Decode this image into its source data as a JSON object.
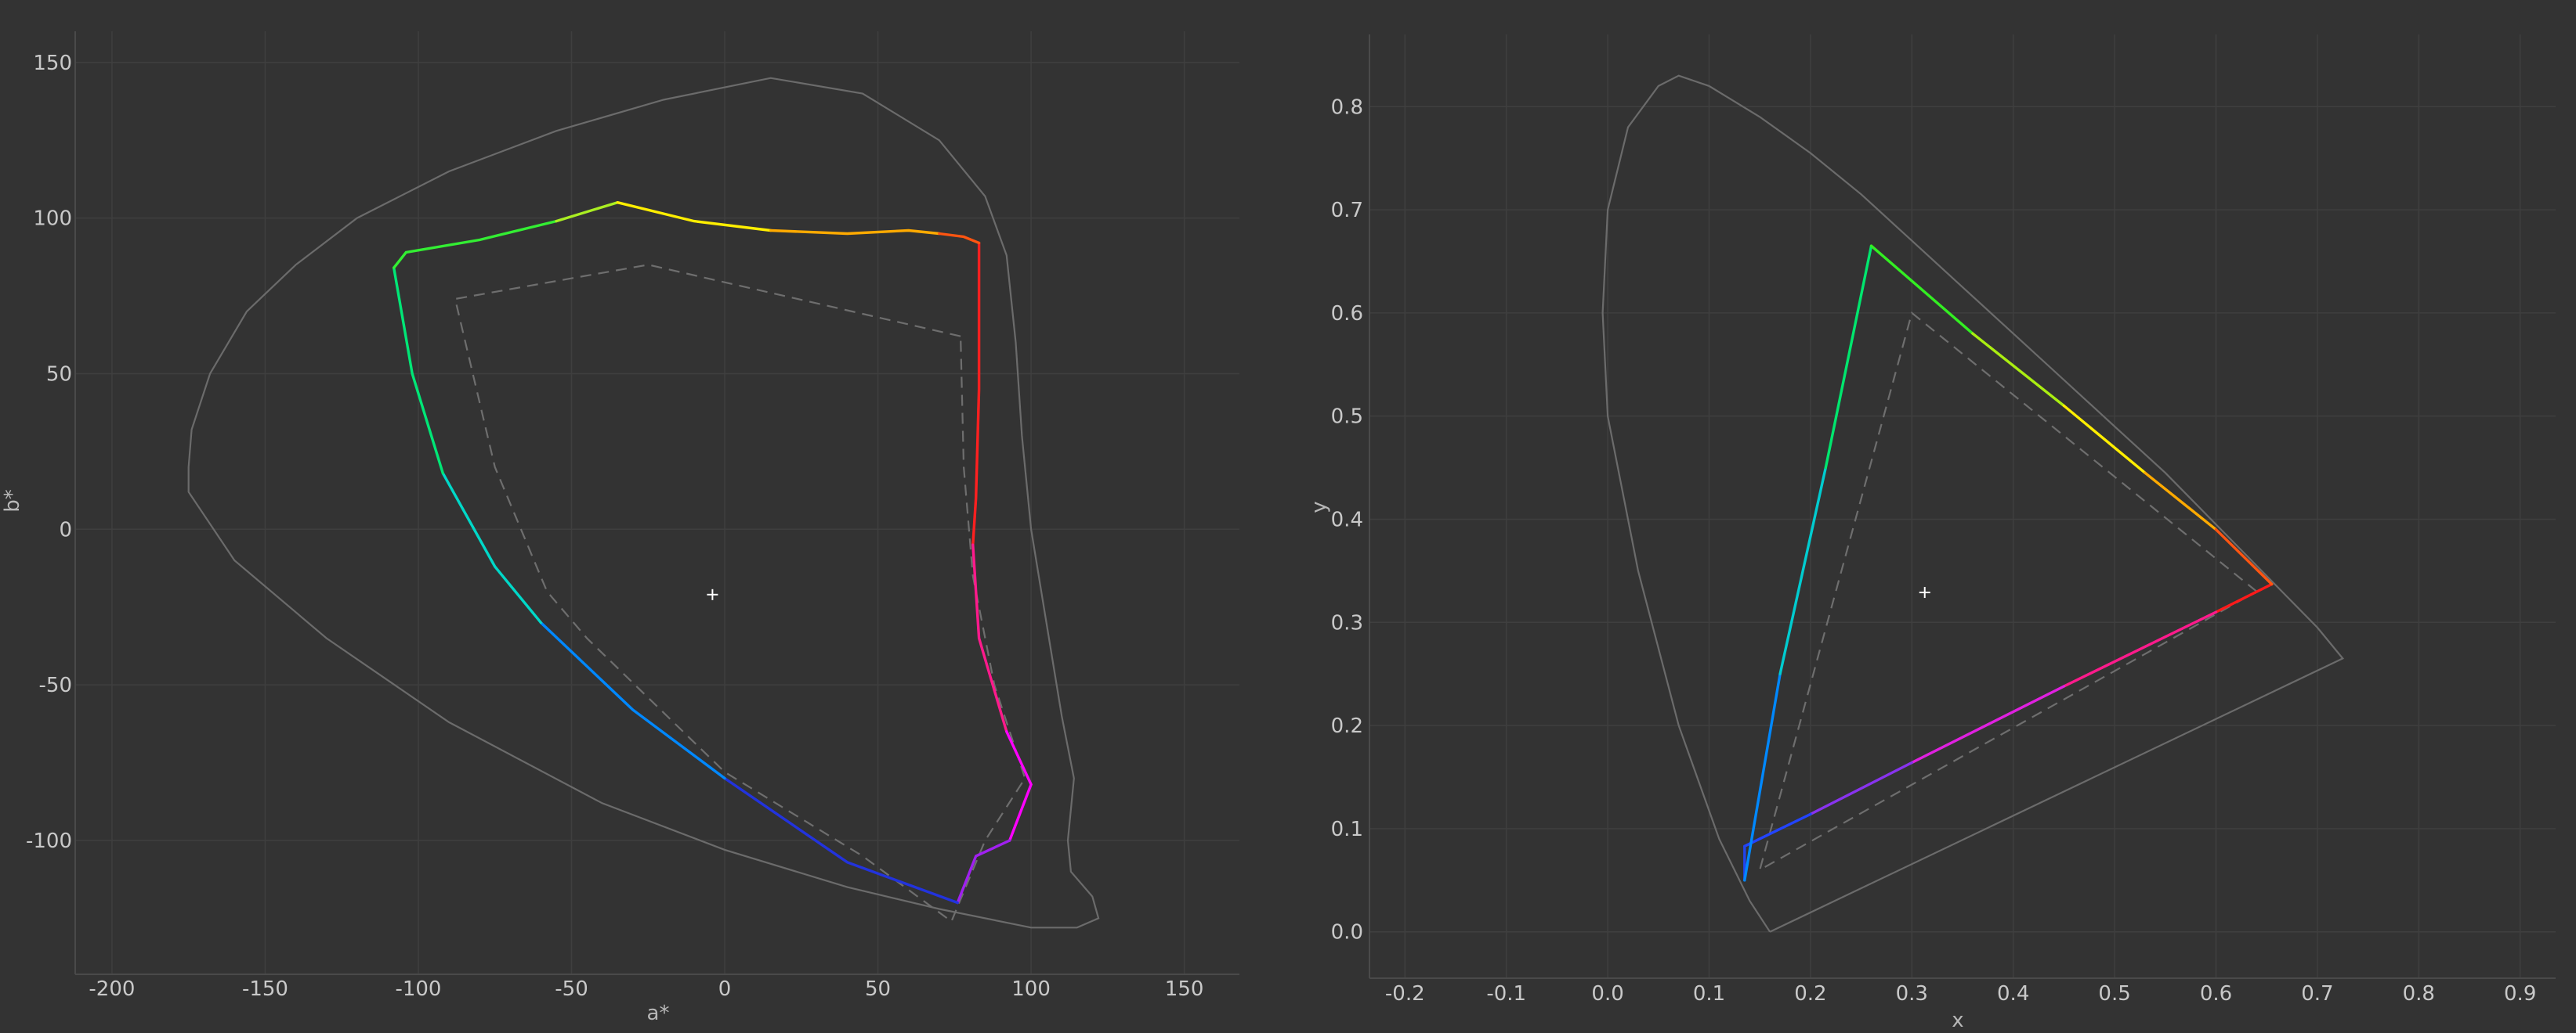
{
  "chart_data": [
    {
      "type": "scatter",
      "title": "",
      "xlabel": "a*",
      "ylabel": "b*",
      "xlim": [
        -212,
        168
      ],
      "ylim": [
        -143,
        160
      ],
      "grid": true,
      "x_ticks": [
        -200,
        -150,
        -100,
        -50,
        0,
        50,
        100,
        150
      ],
      "y_ticks": [
        150,
        100,
        50,
        0,
        -50,
        -100
      ],
      "x_tick_labels": [
        "-200",
        "-150",
        "-100",
        "-50",
        "0",
        "50",
        "100",
        "150"
      ],
      "y_tick_labels": [
        "150",
        "100",
        "50",
        "0",
        "-50",
        "-100"
      ],
      "spectral_locus": [
        [
          -175,
          20
        ],
        [
          -174,
          32
        ],
        [
          -168,
          50
        ],
        [
          -156,
          70
        ],
        [
          -140,
          85
        ],
        [
          -120,
          100
        ],
        [
          -90,
          115
        ],
        [
          -55,
          128
        ],
        [
          -20,
          138
        ],
        [
          15,
          145
        ],
        [
          45,
          140
        ],
        [
          70,
          125
        ],
        [
          85,
          107
        ],
        [
          92,
          88
        ],
        [
          95,
          60
        ],
        [
          97,
          30
        ],
        [
          100,
          0
        ],
        [
          105,
          -30
        ],
        [
          110,
          -60
        ],
        [
          114,
          -80
        ],
        [
          112,
          -100
        ],
        [
          113,
          -110
        ],
        [
          120,
          -118
        ],
        [
          122,
          -125
        ],
        [
          115,
          -128
        ],
        [
          100,
          -128
        ],
        [
          70,
          -122
        ],
        [
          40,
          -115
        ],
        [
          0,
          -103
        ],
        [
          -40,
          -88
        ],
        [
          -90,
          -62
        ],
        [
          -130,
          -35
        ],
        [
          -160,
          -10
        ],
        [
          -175,
          12
        ],
        [
          -175,
          20
        ]
      ],
      "gamut_boundary": [
        {
          "color": "#ff2020",
          "points": [
            [
              83,
              92
            ],
            [
              83,
              45
            ],
            [
              82,
              10
            ],
            [
              81,
              -5
            ]
          ]
        },
        {
          "color": "#ff1a8c",
          "points": [
            [
              81,
              -5
            ],
            [
              83,
              -35
            ],
            [
              86,
              -45
            ],
            [
              92,
              -65
            ]
          ]
        },
        {
          "color": "#ff00ff",
          "points": [
            [
              92,
              -65
            ],
            [
              100,
              -82
            ],
            [
              93,
              -100
            ]
          ]
        },
        {
          "color": "#a020f0",
          "points": [
            [
              93,
              -100
            ],
            [
              82,
              -105
            ],
            [
              76,
              -120
            ]
          ]
        },
        {
          "color": "#2233dd",
          "points": [
            [
              76,
              -120
            ],
            [
              40,
              -107
            ],
            [
              0,
              -80
            ]
          ]
        },
        {
          "color": "#0088ff",
          "points": [
            [
              0,
              -80
            ],
            [
              -30,
              -58
            ],
            [
              -60,
              -30
            ]
          ]
        },
        {
          "color": "#00d8c8",
          "points": [
            [
              -60,
              -30
            ],
            [
              -75,
              -12
            ],
            [
              -92,
              18
            ]
          ]
        },
        {
          "color": "#00e676",
          "points": [
            [
              -92,
              18
            ],
            [
              -102,
              50
            ],
            [
              -108,
              84
            ]
          ]
        },
        {
          "color": "#33ee33",
          "points": [
            [
              -108,
              84
            ],
            [
              -104,
              89
            ],
            [
              -80,
              93
            ],
            [
              -55,
              99
            ]
          ]
        },
        {
          "color": "#aaee22",
          "points": [
            [
              -55,
              99
            ],
            [
              -35,
              105
            ]
          ]
        },
        {
          "color": "#ffee00",
          "points": [
            [
              -35,
              105
            ],
            [
              -10,
              99
            ],
            [
              15,
              96
            ]
          ]
        },
        {
          "color": "#ffaa00",
          "points": [
            [
              15,
              96
            ],
            [
              40,
              95
            ],
            [
              60,
              96
            ],
            [
              70,
              95
            ]
          ]
        },
        {
          "color": "#ff5511",
          "points": [
            [
              70,
              95
            ],
            [
              78,
              94
            ],
            [
              83,
              92
            ]
          ]
        }
      ],
      "reference_gamut": [
        [
          77,
          62
        ],
        [
          -25,
          85
        ],
        [
          -88,
          74
        ],
        [
          -75,
          20
        ],
        [
          -58,
          -20
        ],
        [
          -45,
          -35
        ],
        [
          0,
          -78
        ],
        [
          45,
          -105
        ],
        [
          74,
          -126
        ],
        [
          85,
          -100
        ],
        [
          98,
          -80
        ],
        [
          88,
          -50
        ],
        [
          81,
          -15
        ],
        [
          78,
          20
        ],
        [
          77,
          62
        ]
      ],
      "white_point": [
        -4,
        -21
      ]
    },
    {
      "type": "scatter",
      "title": "",
      "xlabel": "x",
      "ylabel": "y",
      "xlim": [
        -0.235,
        0.935
      ],
      "ylim": [
        -0.045,
        0.87
      ],
      "grid": true,
      "x_ticks": [
        -0.2,
        -0.1,
        0.0,
        0.1,
        0.2,
        0.3,
        0.4,
        0.5,
        0.6,
        0.7,
        0.8,
        0.9
      ],
      "y_ticks": [
        0.0,
        0.1,
        0.2,
        0.3,
        0.4,
        0.5,
        0.6,
        0.7,
        0.8
      ],
      "x_tick_labels": [
        "-0.2",
        "-0.1",
        "0.0",
        "0.1",
        "0.2",
        "0.3",
        "0.4",
        "0.5",
        "0.6",
        "0.7",
        "0.8",
        "0.9"
      ],
      "y_tick_labels": [
        "0.0",
        "0.1",
        "0.2",
        "0.3",
        "0.4",
        "0.5",
        "0.6",
        "0.7",
        "0.8"
      ],
      "spectral_locus": [
        [
          0.16,
          0.0
        ],
        [
          0.14,
          0.03
        ],
        [
          0.11,
          0.09
        ],
        [
          0.07,
          0.2
        ],
        [
          0.03,
          0.35
        ],
        [
          0.0,
          0.5
        ],
        [
          -0.005,
          0.6
        ],
        [
          0.0,
          0.7
        ],
        [
          0.02,
          0.78
        ],
        [
          0.05,
          0.82
        ],
        [
          0.07,
          0.83
        ],
        [
          0.1,
          0.82
        ],
        [
          0.15,
          0.79
        ],
        [
          0.2,
          0.755
        ],
        [
          0.25,
          0.715
        ],
        [
          0.3,
          0.67
        ],
        [
          0.35,
          0.625
        ],
        [
          0.4,
          0.58
        ],
        [
          0.45,
          0.535
        ],
        [
          0.5,
          0.49
        ],
        [
          0.55,
          0.445
        ],
        [
          0.6,
          0.395
        ],
        [
          0.65,
          0.345
        ],
        [
          0.7,
          0.295
        ],
        [
          0.725,
          0.265
        ],
        [
          0.16,
          0.0
        ]
      ],
      "gamut_boundary": [
        {
          "color": "#ff1a1a",
          "points": [
            [
              0.655,
              0.337
            ],
            [
              0.6,
              0.31
            ]
          ]
        },
        {
          "color": "#ff1a8c",
          "points": [
            [
              0.6,
              0.31
            ],
            [
              0.45,
              0.238
            ]
          ]
        },
        {
          "color": "#e020e0",
          "points": [
            [
              0.45,
              0.238
            ],
            [
              0.3,
              0.164
            ]
          ]
        },
        {
          "color": "#8833ee",
          "points": [
            [
              0.3,
              0.164
            ],
            [
              0.2,
              0.114
            ]
          ]
        },
        {
          "color": "#2244ff",
          "points": [
            [
              0.2,
              0.114
            ],
            [
              0.135,
              0.083
            ]
          ]
        },
        {
          "color": "#2244ee",
          "points": [
            [
              0.135,
              0.083
            ],
            [
              0.135,
              0.05
            ]
          ]
        },
        {
          "color": "#0088ff",
          "points": [
            [
              0.135,
              0.05
            ],
            [
              0.17,
              0.25
            ]
          ]
        },
        {
          "color": "#00ccd0",
          "points": [
            [
              0.17,
              0.25
            ],
            [
              0.215,
              0.45
            ]
          ]
        },
        {
          "color": "#00e66e",
          "points": [
            [
              0.215,
              0.45
            ],
            [
              0.26,
              0.665
            ]
          ]
        },
        {
          "color": "#33ee22",
          "points": [
            [
              0.26,
              0.665
            ],
            [
              0.36,
              0.58
            ]
          ]
        },
        {
          "color": "#aaee11",
          "points": [
            [
              0.36,
              0.58
            ],
            [
              0.45,
              0.51
            ]
          ]
        },
        {
          "color": "#ffee00",
          "points": [
            [
              0.45,
              0.51
            ],
            [
              0.53,
              0.445
            ]
          ]
        },
        {
          "color": "#ffaa00",
          "points": [
            [
              0.53,
              0.445
            ],
            [
              0.6,
              0.39
            ]
          ]
        },
        {
          "color": "#ff5511",
          "points": [
            [
              0.6,
              0.39
            ],
            [
              0.655,
              0.337
            ]
          ]
        }
      ],
      "reference_gamut": [
        [
          0.64,
          0.33
        ],
        [
          0.3,
          0.6
        ],
        [
          0.15,
          0.06
        ],
        [
          0.64,
          0.33
        ]
      ],
      "white_point": [
        0.3127,
        0.329
      ]
    }
  ]
}
